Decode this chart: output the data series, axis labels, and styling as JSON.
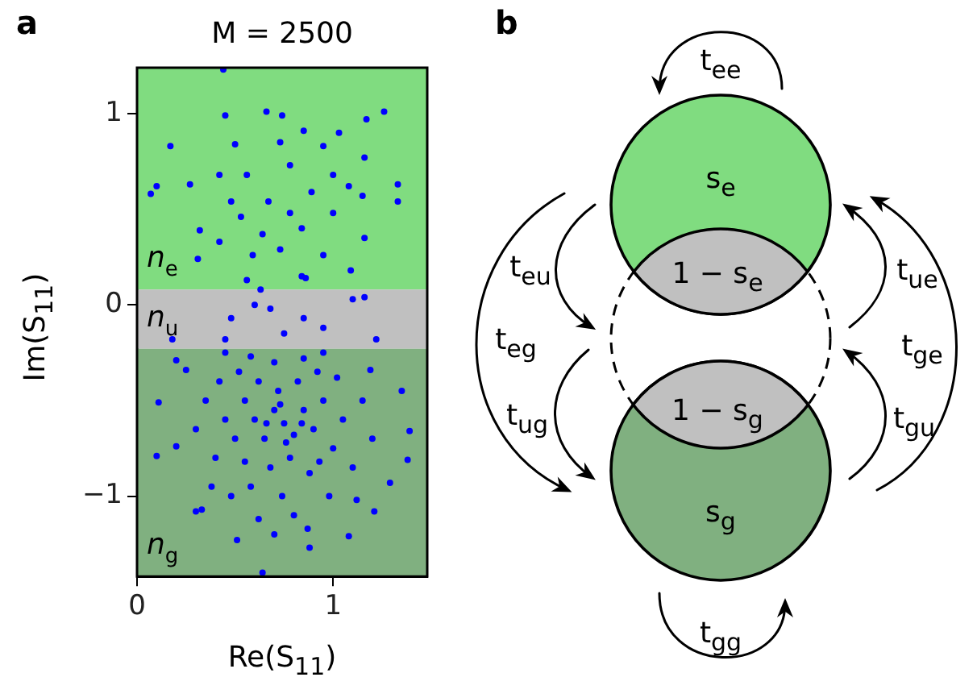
{
  "chart_data": [
    {
      "type": "scatter",
      "title": "M = 2500",
      "xlabel": "Re(S$_{11}$)",
      "ylabel": "Im(S$_{11}$)",
      "annotations": [
        "a"
      ],
      "color": "#0000ff",
      "marker": "circle",
      "grid": false,
      "legend": false,
      "xlim": [
        0,
        1.48
      ],
      "xticks": [
        0,
        1
      ],
      "ylim": [
        -1.42,
        1.24
      ],
      "yticks": [
        -1,
        0,
        1
      ],
      "bands": [
        {
          "axis": "y",
          "from": 0.08,
          "to": 1.24,
          "label": "n$_{e}$",
          "color": "#80dc80"
        },
        {
          "axis": "y",
          "from": -0.23,
          "to": 0.08,
          "label": "n$_{u}$",
          "color": "#c0c0c0"
        },
        {
          "axis": "y",
          "from": -1.42,
          "to": -0.23,
          "label": "n$_{g}$",
          "color": "#80b080"
        }
      ],
      "x": [
        0.44,
        1.26,
        1.17,
        0.17,
        0.07,
        0.1,
        1.33,
        1.33,
        0.27,
        0.32,
        0.31,
        0.45,
        0.66,
        0.74,
        1.03,
        1.16,
        1.15,
        1.16,
        1.09,
        0.56,
        0.86,
        0.63,
        0.42,
        0.5,
        0.85,
        0.73,
        0.95,
        0.56,
        0.78,
        0.89,
        0.67,
        1.0,
        0.53,
        0.84,
        0.73,
        0.95,
        0.64,
        0.48,
        1.08,
        0.78,
        0.59,
        0.42,
        1.0,
        0.84,
        0.6,
        1.16,
        0.48,
        0.18,
        0.68,
        0.85,
        0.45,
        0.95,
        0.75,
        1.1,
        0.1,
        0.11,
        0.2,
        0.25,
        1.35,
        1.39,
        1.38,
        1.29,
        1.21,
        1.08,
        0.88,
        0.64,
        0.51,
        0.3,
        0.33,
        0.2,
        1.19,
        1.22,
        0.75,
        0.7,
        0.8,
        0.65,
        0.85,
        0.72,
        0.6,
        0.9,
        0.78,
        0.68,
        0.55,
        0.95,
        0.82,
        0.62,
        0.5,
        1.0,
        0.88,
        0.58,
        0.74,
        0.45,
        1.05,
        0.92,
        0.52,
        0.7,
        0.4,
        1.1,
        0.98,
        0.48,
        0.8,
        0.62,
        0.35,
        1.15,
        0.42,
        1.02,
        0.85,
        0.58,
        0.66,
        0.84,
        0.76,
        0.73,
        0.38,
        1.12,
        0.55,
        0.93,
        0.3,
        1.2,
        0.45,
        0.95,
        0.7,
        0.87
      ],
      "values": [
        1.23,
        1.01,
        0.97,
        0.83,
        0.58,
        0.62,
        0.54,
        0.63,
        0.63,
        0.39,
        0.24,
        0.99,
        1.01,
        0.99,
        0.9,
        0.77,
        0.57,
        0.35,
        0.18,
        0.13,
        0.14,
        0.08,
        0.33,
        0.84,
        0.91,
        0.85,
        0.83,
        0.68,
        0.73,
        0.59,
        0.54,
        0.48,
        0.46,
        0.4,
        0.29,
        0.26,
        0.37,
        0.54,
        0.62,
        0.48,
        0.26,
        0.68,
        0.68,
        0.15,
        0.0,
        0.04,
        -0.07,
        -0.18,
        -0.02,
        -0.07,
        -0.18,
        -0.12,
        -0.15,
        0.03,
        -0.79,
        -0.51,
        -0.29,
        -0.34,
        -0.45,
        -0.66,
        -0.81,
        -0.93,
        -1.08,
        -1.21,
        -1.27,
        -1.4,
        -1.23,
        -1.08,
        -1.07,
        -0.74,
        -0.34,
        -0.18,
        -0.62,
        -0.55,
        -0.68,
        -0.7,
        -0.55,
        -0.45,
        -0.6,
        -0.65,
        -0.8,
        -0.85,
        -0.5,
        -0.5,
        -0.4,
        -0.4,
        -0.7,
        -0.75,
        -0.88,
        -0.95,
        -1.0,
        -0.6,
        -0.6,
        -0.35,
        -0.35,
        -0.3,
        -0.8,
        -0.85,
        -1.0,
        -1.0,
        -1.1,
        -1.12,
        -0.5,
        -0.5,
        -0.4,
        -0.38,
        -0.28,
        -0.27,
        -0.62,
        -0.62,
        -0.72,
        -0.52,
        -0.95,
        -1.02,
        -0.82,
        -0.82,
        -0.65,
        -0.7,
        -0.25,
        -0.25,
        -1.2,
        -1.17
      ]
    },
    {
      "type": "other",
      "annotations": [
        "b",
        "t$_{ee}$",
        "s$_{e}$",
        "1 − s$_{e}$",
        "t$_{eu}$",
        "t$_{eg}$",
        "t$_{ue}$",
        "t$_{ge}$",
        "1 − s$_{g}$",
        "t$_{ug}$",
        "t$_{gu}$",
        "s$_{g}$",
        "t$_{gg}$"
      ]
    }
  ]
}
